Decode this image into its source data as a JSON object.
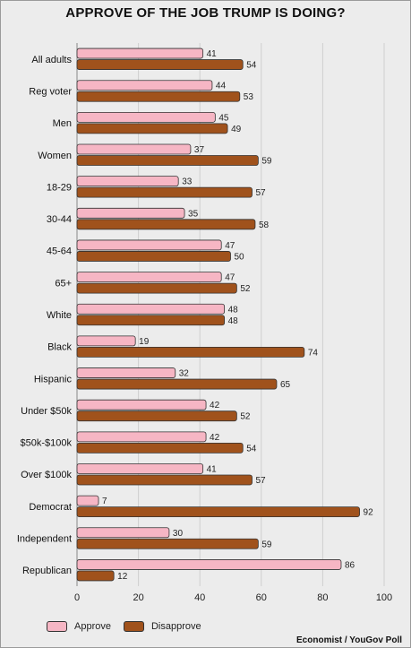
{
  "colors": {
    "approve": "#f6b6c4",
    "disapprove": "#a0521c",
    "grid": "#cfcfcf",
    "background": "#ececec"
  },
  "legend": {
    "approve_label": "Approve",
    "disapprove_label": "Disapprove"
  },
  "source": "Economist / YouGov Poll",
  "chart_data": {
    "type": "bar",
    "orientation": "horizontal",
    "title": "APPROVE OF THE JOB TRUMP IS DOING?",
    "xlabel": "",
    "ylabel": "",
    "xlim": [
      0,
      100
    ],
    "xticks": [
      0,
      20,
      40,
      60,
      80,
      100
    ],
    "grid": true,
    "legend_position": "bottom-left",
    "categories": [
      "All adults",
      "Reg voter",
      "Men",
      "Women",
      "18-29",
      "30-44",
      "45-64",
      "65+",
      "White",
      "Black",
      "Hispanic",
      "Under $50k",
      "$50k-$100k",
      "Over $100k",
      "Democrat",
      "Independent",
      "Republican"
    ],
    "series": [
      {
        "name": "Approve",
        "values": [
          41,
          44,
          45,
          37,
          33,
          35,
          47,
          47,
          48,
          19,
          32,
          42,
          42,
          41,
          7,
          30,
          86
        ]
      },
      {
        "name": "Disapprove",
        "values": [
          54,
          53,
          49,
          59,
          57,
          58,
          50,
          52,
          48,
          74,
          65,
          52,
          54,
          57,
          92,
          59,
          12
        ]
      }
    ]
  }
}
